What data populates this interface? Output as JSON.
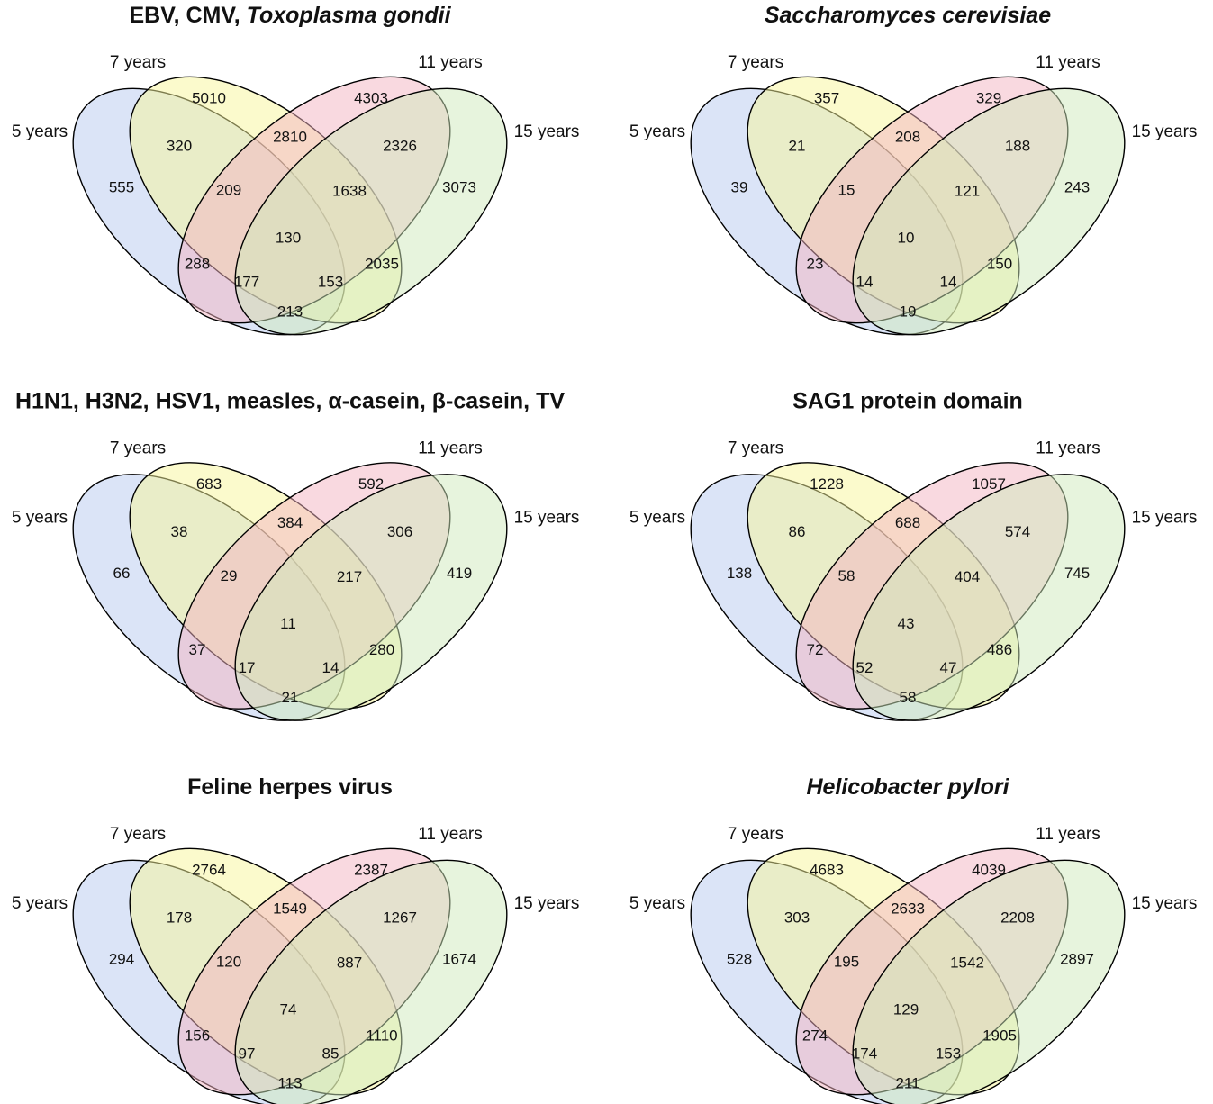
{
  "sets": [
    "5 years",
    "7 years",
    "11 years",
    "15 years"
  ],
  "panels": [
    {
      "title": [
        "EBV, CMV, ",
        "Toxoplasma gondii"
      ],
      "italic": [
        false,
        true
      ],
      "counts": [
        555,
        5010,
        4303,
        3073,
        320,
        2810,
        2326,
        209,
        1638,
        130,
        288,
        2035,
        177,
        153,
        213
      ]
    },
    {
      "title": [
        "Saccharomyces cerevisiae"
      ],
      "italic": [
        true
      ],
      "counts": [
        39,
        357,
        329,
        243,
        21,
        208,
        188,
        15,
        121,
        10,
        23,
        150,
        14,
        14,
        19
      ]
    },
    {
      "title": [
        "H1N1, H3N2, HSV1, measles, α-casein, β-casein, TV"
      ],
      "italic": [
        false
      ],
      "counts": [
        66,
        683,
        592,
        419,
        38,
        384,
        306,
        29,
        217,
        11,
        37,
        280,
        17,
        14,
        21
      ]
    },
    {
      "title": [
        "SAG1 protein domain"
      ],
      "italic": [
        false
      ],
      "counts": [
        138,
        1228,
        1057,
        745,
        86,
        688,
        574,
        58,
        404,
        43,
        72,
        486,
        52,
        47,
        58
      ]
    },
    {
      "title": [
        "Feline herpes virus"
      ],
      "italic": [
        false
      ],
      "counts": [
        294,
        2764,
        2387,
        1674,
        178,
        1549,
        1267,
        120,
        887,
        74,
        156,
        1110,
        97,
        85,
        113
      ]
    },
    {
      "title": [
        "Helicobacter pylori"
      ],
      "italic": [
        true
      ],
      "counts": [
        528,
        4683,
        4039,
        2897,
        303,
        2633,
        2208,
        195,
        1542,
        129,
        274,
        1905,
        174,
        153,
        211
      ]
    }
  ]
}
